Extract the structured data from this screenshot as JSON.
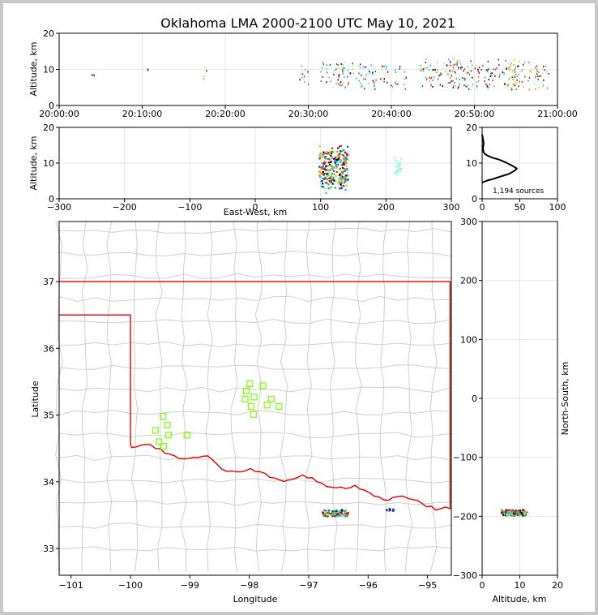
{
  "title": "Oklahoma LMA 2000-2100 UTC May 10, 2021",
  "source_count_label": "1,194 sources",
  "chart_data": [
    {
      "panel": "altitude-time",
      "type": "scatter",
      "ylabel": "Altitude, km",
      "xlabel": "",
      "x_ticks": [
        "20:00:00",
        "20:10:00",
        "20:20:00",
        "20:30:00",
        "20:40:00",
        "20:50:00",
        "21:00:00"
      ],
      "y_ticks": [
        "0",
        "10",
        "20"
      ],
      "ylim": [
        0,
        20
      ],
      "xlim_minutes": [
        0,
        60
      ],
      "grid": true,
      "clusters_minutes_altitude": [
        [
          4.2,
          8.2,
          0.3,
          0.4
        ],
        [
          10.5,
          10.0,
          0.3,
          0.3
        ],
        [
          17.5,
          8.8,
          0.3,
          2.0
        ],
        [
          29.5,
          8.5,
          0.6,
          3.0
        ],
        [
          33.0,
          8.5,
          1.5,
          3.5
        ],
        [
          35.0,
          8.5,
          1.5,
          3.5
        ],
        [
          37.0,
          8.0,
          1.2,
          3.5
        ],
        [
          39.0,
          9.0,
          0.6,
          3.0
        ],
        [
          40.5,
          8.0,
          0.6,
          3.0
        ],
        [
          41.5,
          6.5,
          0.3,
          3.0
        ],
        [
          44.5,
          8.0,
          1.0,
          3.0
        ],
        [
          46.5,
          9.0,
          2.5,
          4.0
        ],
        [
          49.5,
          8.5,
          2.5,
          4.0
        ],
        [
          53.5,
          9.0,
          2.0,
          4.0
        ],
        [
          56.5,
          8.0,
          2.5,
          4.0
        ]
      ]
    },
    {
      "panel": "altitude-eastwest",
      "type": "heatmap",
      "xlabel": "East-West, km",
      "ylabel": "Altitude, km",
      "x_ticks": [
        "−300",
        "−200",
        "−100",
        "0",
        "100",
        "200",
        "300"
      ],
      "y_ticks": [
        "0",
        "10",
        "20"
      ],
      "xlim": [
        -300,
        300
      ],
      "ylim": [
        0,
        20
      ],
      "grid": true,
      "clusters_km": [
        [
          120,
          8.5,
          22,
          7
        ],
        [
          218,
          9.0,
          6,
          3
        ]
      ]
    },
    {
      "panel": "altitude-histogram",
      "type": "line",
      "x_ticks": [
        "0",
        "50",
        "100"
      ],
      "y_ticks": [
        "0",
        "10",
        "20"
      ],
      "xlim": [
        0,
        100
      ],
      "ylim": [
        0,
        20
      ],
      "grid": true,
      "profile_count_altitude": [
        [
          0,
          4.5
        ],
        [
          3,
          4.8
        ],
        [
          8,
          5.2
        ],
        [
          14,
          5.5
        ],
        [
          18,
          5.8
        ],
        [
          24,
          6.2
        ],
        [
          30,
          6.6
        ],
        [
          36,
          7.0
        ],
        [
          40,
          7.5
        ],
        [
          44,
          8.0
        ],
        [
          46,
          8.5
        ],
        [
          42,
          9.0
        ],
        [
          38,
          9.5
        ],
        [
          33,
          10.0
        ],
        [
          28,
          10.5
        ],
        [
          22,
          11.0
        ],
        [
          14,
          11.5
        ],
        [
          8,
          12.0
        ],
        [
          4,
          12.5
        ],
        [
          2,
          13.0
        ],
        [
          1,
          14.0
        ],
        [
          2,
          15.5
        ],
        [
          1,
          17.0
        ],
        [
          0,
          18.0
        ]
      ]
    },
    {
      "panel": "map",
      "type": "scatter",
      "xlabel": "Longitude",
      "ylabel": "Latitude",
      "x_ticks": [
        "−101",
        "−100",
        "−99",
        "−98",
        "−97",
        "−96",
        "−95"
      ],
      "y_ticks": [
        "33",
        "34",
        "35",
        "36",
        "37"
      ],
      "xlim": [
        -101.2,
        -94.6
      ],
      "ylim": [
        32.6,
        37.9
      ],
      "stations": [
        [
          -99.45,
          34.98
        ],
        [
          -99.38,
          34.85
        ],
        [
          -99.58,
          34.77
        ],
        [
          -99.36,
          34.7
        ],
        [
          -99.52,
          34.6
        ],
        [
          -99.44,
          34.53
        ],
        [
          -99.05,
          34.7
        ],
        [
          -97.99,
          35.47
        ],
        [
          -98.05,
          35.36
        ],
        [
          -97.77,
          35.44
        ],
        [
          -98.07,
          35.24
        ],
        [
          -97.92,
          35.27
        ],
        [
          -97.63,
          35.24
        ],
        [
          -97.97,
          35.13
        ],
        [
          -97.7,
          35.15
        ],
        [
          -97.5,
          35.13
        ],
        [
          -97.93,
          35.01
        ]
      ],
      "source_clusters": [
        [
          -96.55,
          33.53,
          0.22,
          0.05
        ],
        [
          -95.6,
          33.58,
          0.1,
          0.02
        ]
      ]
    },
    {
      "panel": "altitude-northsouth",
      "type": "heatmap",
      "xlabel": "Altitude, km",
      "ylabel": "North-South, km",
      "x_ticks": [
        "0",
        "10",
        "20"
      ],
      "y_ticks": [
        "−300",
        "−200",
        "−100",
        "0",
        "100",
        "200",
        "300"
      ],
      "xlim": [
        0,
        20
      ],
      "ylim": [
        -300,
        300
      ],
      "grid": true,
      "clusters_km": [
        [
          8.5,
          -194,
          3.5,
          5
        ]
      ]
    }
  ]
}
